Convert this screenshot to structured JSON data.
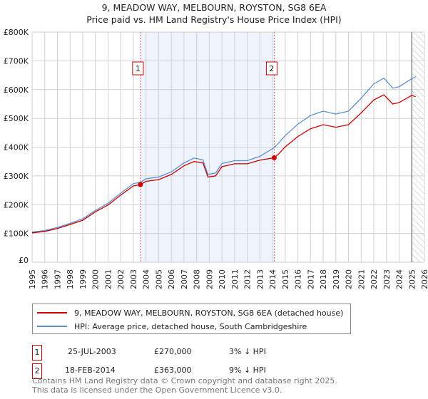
{
  "title": "9, MEADOW WAY, MELBOURN, ROYSTON, SG8 6EA",
  "subtitle": "Price paid vs. HM Land Registry's House Price Index (HPI)",
  "chart_data": {
    "type": "line",
    "title": "9, MEADOW WAY, MELBOURN, ROYSTON, SG8 6EA — Price paid vs. HM Land Registry's House Price Index (HPI)",
    "xlim": [
      1995,
      2026
    ],
    "ylim": [
      0,
      800000
    ],
    "yticks": [
      {
        "v": 0,
        "label": "£0"
      },
      {
        "v": 100000,
        "label": "£100K"
      },
      {
        "v": 200000,
        "label": "£200K"
      },
      {
        "v": 300000,
        "label": "£300K"
      },
      {
        "v": 400000,
        "label": "£400K"
      },
      {
        "v": 500000,
        "label": "£500K"
      },
      {
        "v": 600000,
        "label": "£600K"
      },
      {
        "v": 700000,
        "label": "£700K"
      },
      {
        "v": 800000,
        "label": "£800K"
      }
    ],
    "xticks": [
      "1995",
      "1996",
      "1997",
      "1998",
      "1999",
      "2000",
      "2001",
      "2002",
      "2003",
      "2004",
      "2005",
      "2006",
      "2007",
      "2008",
      "2009",
      "2010",
      "2011",
      "2012",
      "2013",
      "2014",
      "2015",
      "2016",
      "2017",
      "2018",
      "2019",
      "2020",
      "2021",
      "2022",
      "2023",
      "2024",
      "2025",
      "2026"
    ],
    "grid": true,
    "shaded_range": [
      2003.56,
      2014.13
    ],
    "forecast_hatch_from": 2025.0,
    "series": [
      {
        "name": "9, MEADOW WAY, MELBOURN, ROYSTON, SG8 6EA (detached house)",
        "color": "#cc0000",
        "x": [
          1995,
          1996,
          1997,
          1998,
          1999,
          2000,
          2001,
          2002,
          2003,
          2003.56,
          2004,
          2005,
          2006,
          2007,
          2007.8,
          2008.5,
          2008.9,
          2009.5,
          2010,
          2011,
          2012,
          2013,
          2014.13,
          2014.5,
          2015,
          2016,
          2017,
          2018,
          2019,
          2020,
          2021,
          2022,
          2022.8,
          2023.5,
          2024,
          2025,
          2025.3
        ],
        "y": [
          102000,
          107000,
          117000,
          131000,
          146000,
          175000,
          199000,
          233000,
          265000,
          270000,
          281000,
          287000,
          305000,
          335000,
          350000,
          345000,
          296000,
          300000,
          332000,
          342000,
          342000,
          355000,
          363000,
          377000,
          401000,
          437000,
          464000,
          478000,
          469000,
          478000,
          519000,
          564000,
          582000,
          550000,
          555000,
          580000,
          575000
        ]
      },
      {
        "name": "HPI: Average price, detached house, South Cambridgeshire",
        "color": "#5b8fd4",
        "x": [
          1995,
          1996,
          1997,
          1998,
          1999,
          2000,
          2001,
          2002,
          2003,
          2003.56,
          2004,
          2005,
          2006,
          2007,
          2007.8,
          2008.5,
          2008.9,
          2009.5,
          2010,
          2011,
          2012,
          2013,
          2014.13,
          2014.5,
          2015,
          2016,
          2017,
          2018,
          2019,
          2020,
          2021,
          2022,
          2022.8,
          2023.5,
          2024,
          2025,
          2025.3
        ],
        "y": [
          105000,
          110000,
          121000,
          135000,
          151000,
          180000,
          205000,
          240000,
          273000,
          278000,
          290000,
          296000,
          314000,
          345000,
          362000,
          356000,
          305000,
          310000,
          343000,
          353000,
          353000,
          368000,
          398000,
          415000,
          440000,
          480000,
          510000,
          525000,
          515000,
          525000,
          570000,
          620000,
          640000,
          605000,
          610000,
          638000,
          645000
        ]
      }
    ],
    "annotations": [
      {
        "id": "1",
        "x": 2003.56,
        "y": 270000
      },
      {
        "id": "2",
        "x": 2014.13,
        "y": 363000
      }
    ]
  },
  "legend": [
    {
      "label": "9, MEADOW WAY, MELBOURN, ROYSTON, SG8 6EA (detached house)",
      "color": "#cc0000"
    },
    {
      "label": "HPI: Average price, detached house, South Cambridgeshire",
      "color": "#5b8fd4"
    }
  ],
  "sales": [
    {
      "id": "1",
      "date": "25-JUL-2003",
      "price": "£270,000",
      "hpi": "3% ↓ HPI"
    },
    {
      "id": "2",
      "date": "18-FEB-2014",
      "price": "£363,000",
      "hpi": "9% ↓ HPI"
    }
  ],
  "footer": [
    "Contains HM Land Registry data © Crown copyright and database right 2025.",
    "This data is licensed under the Open Government Licence v3.0."
  ]
}
